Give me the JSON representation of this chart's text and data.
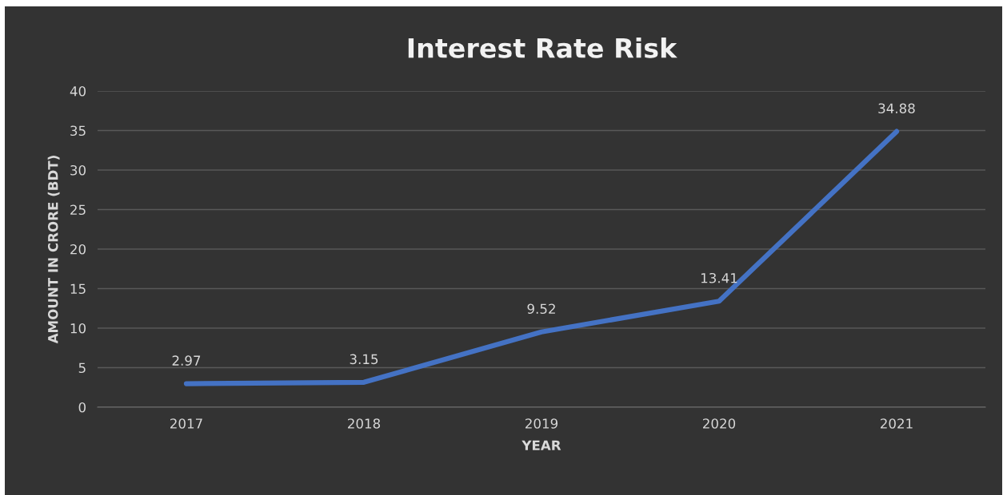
{
  "chart_data": {
    "type": "line",
    "title": "Interest Rate Risk",
    "xlabel": "YEAR",
    "ylabel": "AMOUNT IN CRORE (BDT)",
    "categories": [
      "2017",
      "2018",
      "2019",
      "2020",
      "2021"
    ],
    "series": [
      {
        "color": "#4472c4",
        "values": [
          2.97,
          3.15,
          9.52,
          13.41,
          34.88
        ]
      }
    ],
    "ylim": [
      0,
      40
    ],
    "yticks": [
      0,
      5,
      10,
      15,
      20,
      25,
      30,
      35,
      40
    ],
    "grid": "y",
    "data_labels": true,
    "marker": "none",
    "line_style": "solid"
  }
}
